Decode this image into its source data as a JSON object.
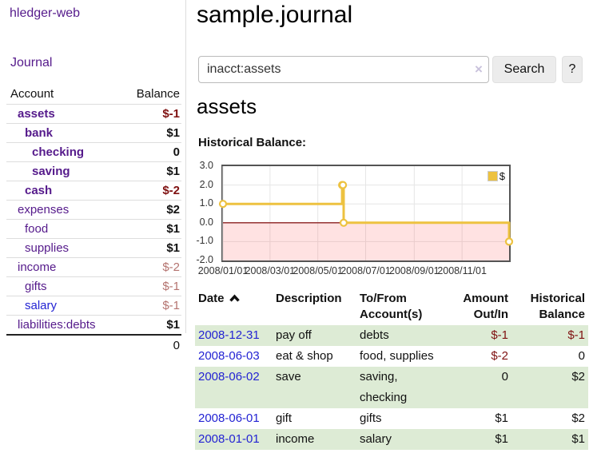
{
  "sidebar": {
    "brand": "hledger-web",
    "nav": {
      "journal": "Journal"
    },
    "accounts_table": {
      "headers": {
        "account": "Account",
        "balance": "Balance"
      },
      "accounts": [
        {
          "name": "assets",
          "balance": "$-1"
        },
        {
          "name": "bank",
          "balance": "$1"
        },
        {
          "name": "checking",
          "balance": "0"
        },
        {
          "name": "saving",
          "balance": "$1"
        },
        {
          "name": "cash",
          "balance": "$-2"
        },
        {
          "name": "expenses",
          "balance": "$2"
        },
        {
          "name": "food",
          "balance": "$1"
        },
        {
          "name": "supplies",
          "balance": "$1"
        },
        {
          "name": "income",
          "balance": "$-2"
        },
        {
          "name": "gifts",
          "balance": "$-1"
        },
        {
          "name": "salary",
          "balance": "$-1"
        },
        {
          "name": "liabilities:debts",
          "balance": "$1"
        }
      ],
      "total": "0"
    }
  },
  "header": {
    "title": "sample.journal"
  },
  "search": {
    "value": "inacct:assets",
    "clear_icon": "×",
    "button_label": "Search",
    "help_label": "?"
  },
  "register": {
    "heading": "assets",
    "chart_label": "Historical Balance:"
  },
  "chart_data": {
    "type": "line",
    "title": "Historical Balance",
    "series": [
      {
        "name": "$",
        "color": "#edc240",
        "step": true,
        "points": [
          [
            "2008-01-01",
            1
          ],
          [
            "2008-06-01",
            2
          ],
          [
            "2008-06-02",
            2
          ],
          [
            "2008-06-03",
            0
          ],
          [
            "2008-12-31",
            -1
          ]
        ]
      }
    ],
    "xlim": [
      "2008-01-01",
      "2008-12-31"
    ],
    "ylim": [
      -2,
      3
    ],
    "y_ticks": [
      "3.0",
      "2.0",
      "1.0",
      "0.0",
      "-1.0",
      "-2.0"
    ],
    "x_tick_labels": [
      "2008/01/01",
      "2008/03/01",
      "2008/05/01",
      "2008/07/01",
      "2008/09/01",
      "2008/11/01"
    ],
    "legend": {
      "label": "$",
      "position": "top-right"
    },
    "grid": true,
    "grid_color": "#e6e6e6",
    "negative_fill": "rgba(255,60,60,0.15)",
    "zero_line_color": "#8b2020",
    "marker_fill": "#ffffff"
  },
  "table": {
    "headers": {
      "date": "Date",
      "description": "Description",
      "tofrom": "To/From\nAccount(s)",
      "amount": "Amount\nOut/In",
      "balance": "Historical\nBalance"
    },
    "sort_icon": "chevron-up",
    "rows": [
      {
        "date": "2008-12-31",
        "description": "pay off",
        "accounts": "debts",
        "amount": "$-1",
        "balance": "$-1"
      },
      {
        "date": "2008-06-03",
        "description": "eat & shop",
        "accounts": "food, supplies",
        "amount": "$-2",
        "balance": "0"
      },
      {
        "date": "2008-06-02",
        "description": "save",
        "accounts": "saving, checking",
        "amount": "0",
        "balance": "$2"
      },
      {
        "date": "2008-06-01",
        "description": "gift",
        "accounts": "gifts",
        "amount": "$1",
        "balance": "$2"
      },
      {
        "date": "2008-01-01",
        "description": "income",
        "accounts": "salary",
        "amount": "$1",
        "balance": "$1"
      }
    ]
  },
  "colors": {
    "link_purple": "#551a8b",
    "link_blue": "#2323d3",
    "negative_strong": "#7f1111",
    "negative_muted": "#b4736f",
    "row_green": "#ddebd5",
    "series_gold": "#edc240"
  }
}
